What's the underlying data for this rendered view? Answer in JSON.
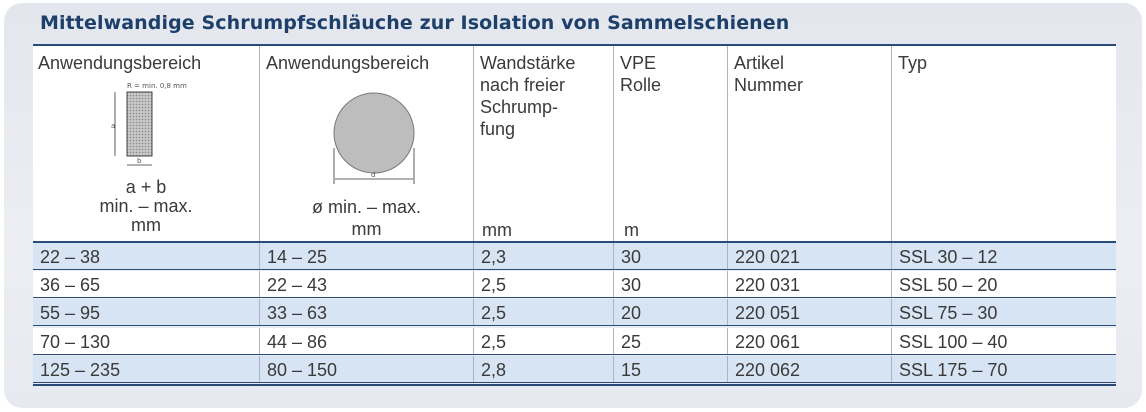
{
  "title": "Mittelwandige Schrumpfschläuche zur Isolation von Sammelschienen",
  "header": {
    "col1": {
      "label": "Anwendungsbereich",
      "figure_note": "R = min. 0,8 mm",
      "formula": "a + b",
      "range": "min. – max.",
      "unit": "mm",
      "fig_a": "a",
      "fig_b": "b"
    },
    "col2": {
      "label": "Anwendungsbereich",
      "figure_d": "d",
      "range": "ø min. – max.",
      "unit": "mm"
    },
    "col3": {
      "line1": "Wandstärke",
      "line2": "nach freier",
      "line3": "Schrump-",
      "line4": "fung",
      "unit": "mm"
    },
    "col4": {
      "line1": "VPE",
      "line2": "Rolle",
      "unit": "m"
    },
    "col5": {
      "line1": "Artikel",
      "line2": "Nummer"
    },
    "col6": {
      "line1": "Typ"
    }
  },
  "rows": [
    [
      "22 – 38",
      "14 – 25",
      "2,3",
      "30",
      "220 021",
      "SSL 30 – 12"
    ],
    [
      "36 – 65",
      "22 – 43",
      "2,5",
      "30",
      "220 031",
      "SSL 50 – 20"
    ],
    [
      "55 – 95",
      "33 – 63",
      "2,5",
      "20",
      "220 051",
      "SSL 75 – 30"
    ],
    [
      "70 – 130",
      "44 – 86",
      "2,5",
      "25",
      "220 061",
      "SSL 100 – 40"
    ],
    [
      "125 – 235",
      "80 – 150",
      "2,8",
      "15",
      "220 062",
      "SSL 175 – 70"
    ]
  ]
}
